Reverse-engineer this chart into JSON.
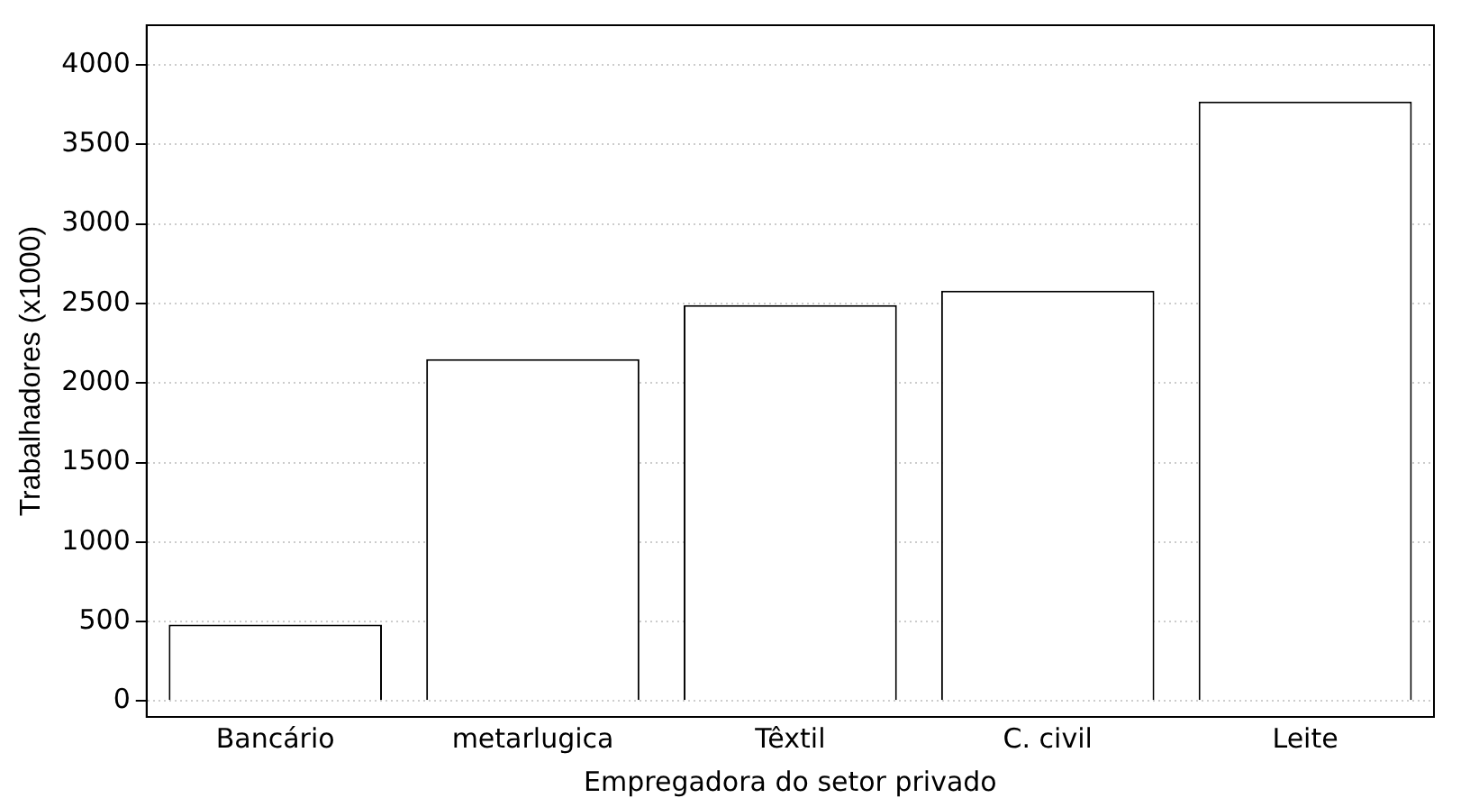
{
  "chart_data": {
    "type": "bar",
    "xlabel": "Empregadora do setor privado",
    "ylabel": "Trabalhadores (x1000)",
    "categories": [
      "Bancário",
      "metarlugica",
      "Têxtil",
      "C. civil",
      "Leite"
    ],
    "values": [
      480,
      2150,
      2490,
      2580,
      3770
    ],
    "color": "#ffffff",
    "ylim": [
      -100,
      4250
    ],
    "yticks": [
      0,
      500,
      1000,
      1500,
      2000,
      2500,
      3000,
      3500,
      4000
    ],
    "grid": "y",
    "legend": false
  }
}
